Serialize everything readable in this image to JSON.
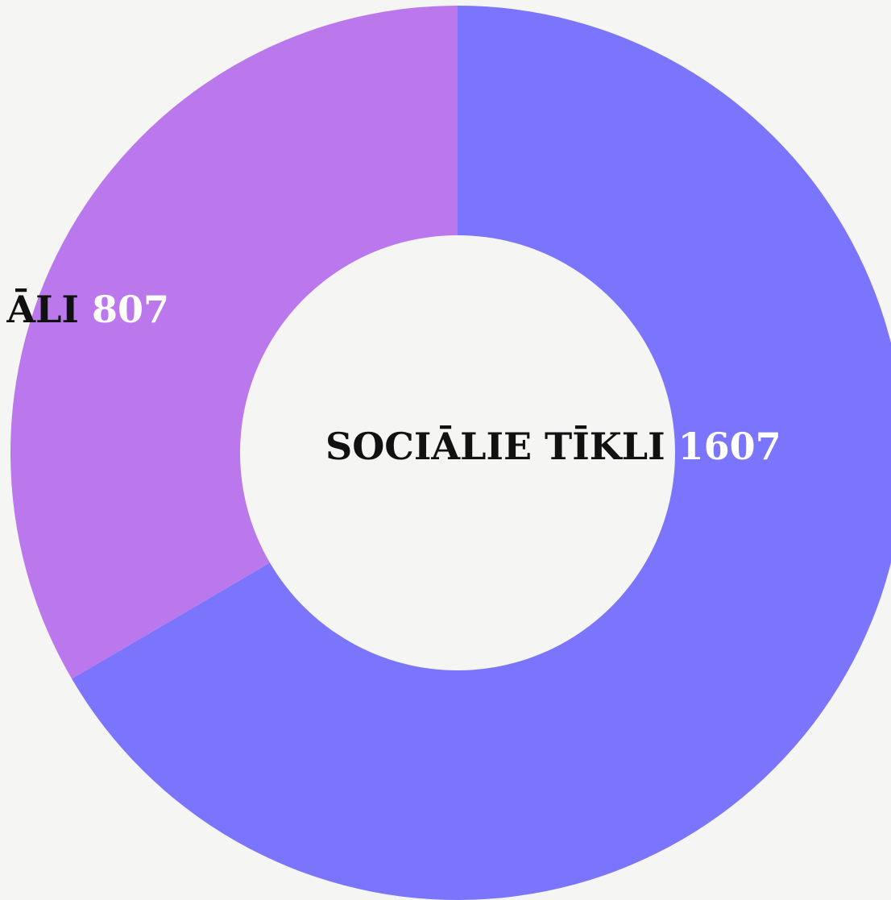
{
  "chart_data": {
    "type": "pie",
    "categories": [
      "SOCIĀLIE TĪKLI",
      "ĀLI"
    ],
    "values": [
      1607,
      807
    ],
    "colors": [
      "#7b74fd",
      "#bb78ec"
    ]
  }
}
